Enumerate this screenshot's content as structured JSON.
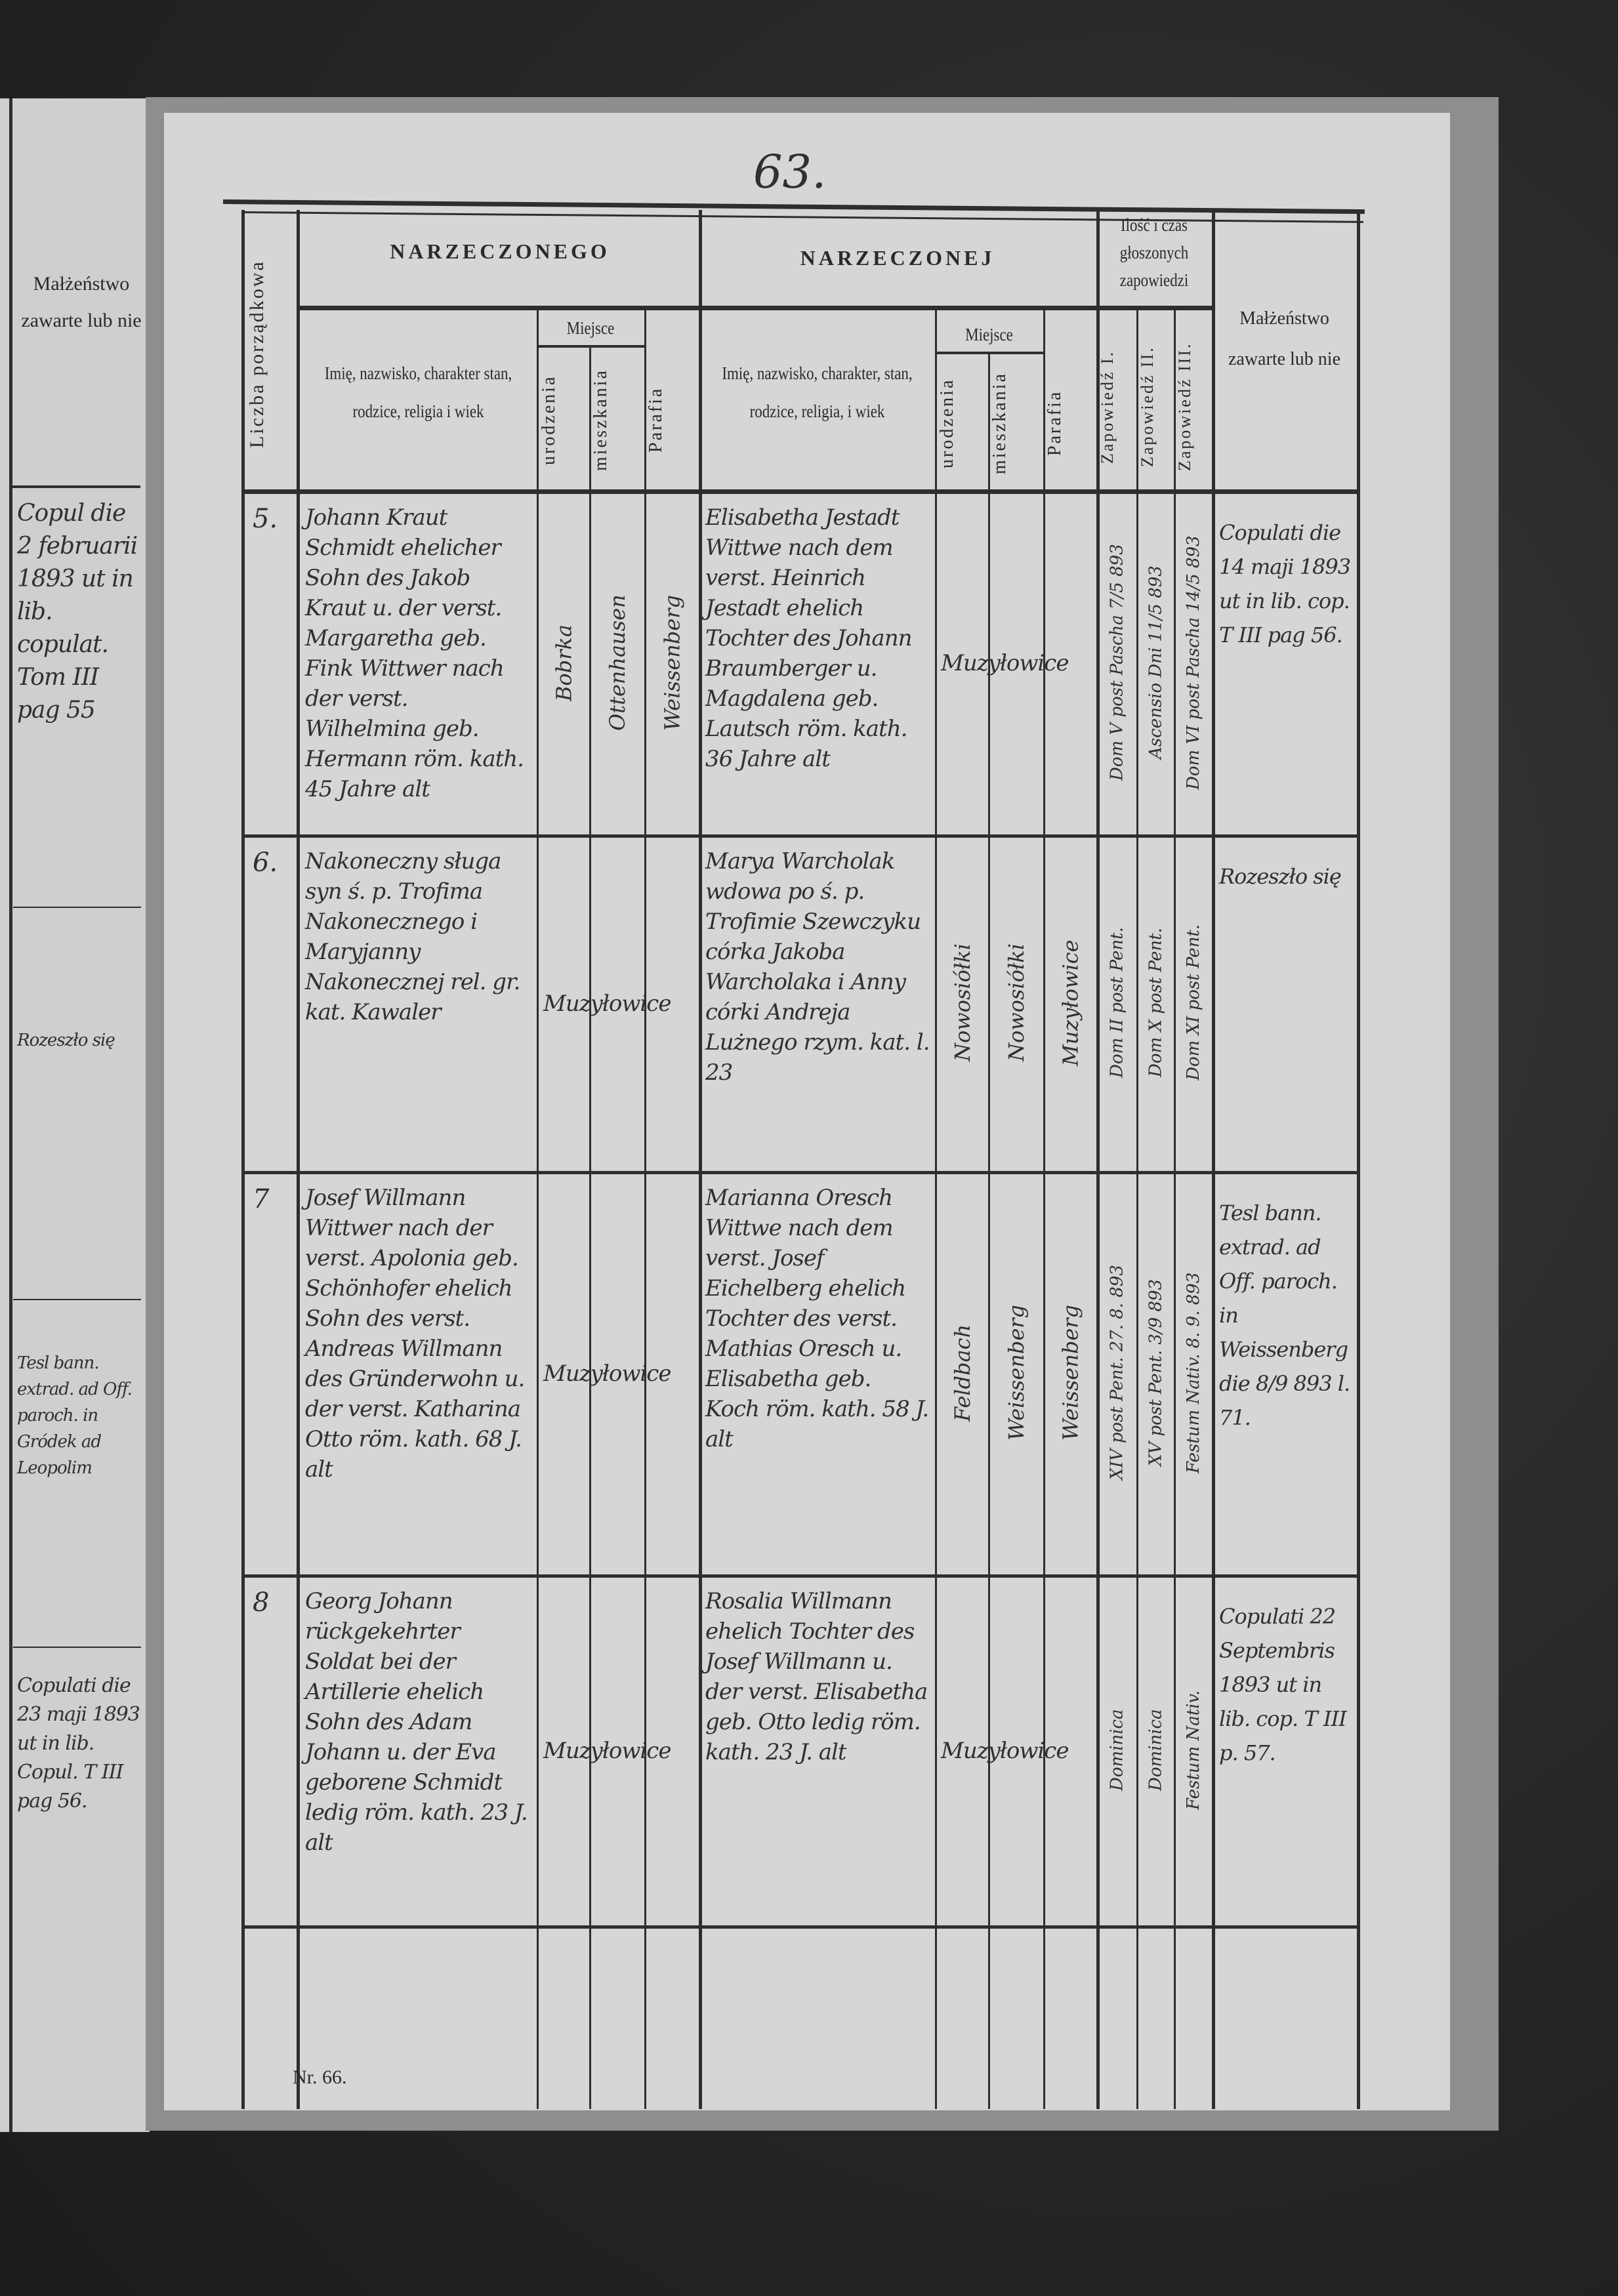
{
  "page_number": "63.",
  "footer": "Nr. 66.",
  "header": {
    "col_number": "Liczba porządkowa",
    "groom_group": "NARZECZONEGO",
    "bride_group": "NARZECZONEJ",
    "name_desc": "Imię, nazwisko, charakter stan, rodzice, religia i wiek",
    "bride_name_desc": "Imię, nazwisko, charakter, stan, rodzice, religia, i wiek",
    "place": "Miejsce",
    "birth": "urodzenia",
    "residence": "mieszkania",
    "parish": "Parafia",
    "banns_group": "Ilość i czas głoszonych zapowiedzi",
    "banns1": "Zapowiedź I.",
    "banns2": "Zapowiedź II.",
    "banns3": "Zapowiedź III.",
    "marriage": "Małżeństwo zawarte lub nie"
  },
  "left_page": {
    "header": "Małżeństwo zawarte lub nie",
    "notes": [
      "Copul die 2 februarii 1893 ut in lib. copulat. Tom III pag 55",
      "Rozeszło się",
      "Tesl bann. extrad. ad Off. paroch. in Gródek ad Leopolim",
      "Copulati die 23 maji 1893 ut in lib. Copul. T III pag 56."
    ]
  },
  "entries": [
    {
      "number": "5.",
      "groom": "Johann Kraut Schmidt ehelicher Sohn des Jakob Kraut u. der verst. Margaretha geb. Fink Wittwer nach der verst. Wilhelmina geb. Hermann röm. kath. 45 Jahre alt",
      "groom_birth": "Bobrka",
      "groom_residence": "Ottenhausen",
      "groom_parish": "Weissenberg",
      "groom_place_wide": "",
      "bride": "Elisabetha Jestadt Wittwe nach dem verst. Heinrich Jestadt ehelich Tochter des Johann Braumberger u. Magdalena geb. Lautsch röm. kath. 36 Jahre alt",
      "bride_birth": "",
      "bride_residence": "",
      "bride_parish": "",
      "bride_place_wide": "Muzyłowice",
      "banns": [
        "Dom V post Pascha 7/5 893",
        "Ascensio Dni 11/5 893",
        "Dom VI post Pascha 14/5 893"
      ],
      "marriage": "Copulati die 14 maji 1893 ut in lib. cop. T III pag 56."
    },
    {
      "number": "6.",
      "groom": "Nakoneczny sługa syn ś. p. Trofima Nakonecznego i Maryjanny Nakonecznej rel. gr. kat. Kawaler",
      "groom_birth": "",
      "groom_residence": "",
      "groom_parish": "",
      "groom_place_wide": "Muzyłowice",
      "bride": "Marya Warcholak wdowa po ś. p. Trofimie Szewczyku córka Jakoba Warcholaka i Anny córki Andreja Lużnego rzym. kat. l. 23",
      "bride_birth": "Nowosiółki",
      "bride_residence": "Nowosiółki",
      "bride_parish": "Muzyłowice",
      "bride_place_wide": "",
      "banns": [
        "Dom II post Pent.",
        "Dom X post Pent.",
        "Dom XI post Pent."
      ],
      "marriage": "Rozeszło się"
    },
    {
      "number": "7",
      "groom": "Josef Willmann Wittwer nach der verst. Apolonia geb. Schönhofer ehelich Sohn des verst. Andreas Willmann des Gründerwohn u. der verst. Katharina Otto röm. kath. 68 J. alt",
      "groom_birth": "",
      "groom_residence": "",
      "groom_parish": "",
      "groom_place_wide": "Muzyłowice",
      "bride": "Marianna Oresch Wittwe nach dem verst. Josef Eichelberg ehelich Tochter des verst. Mathias Oresch u. Elisabetha geb. Koch röm. kath. 58 J. alt",
      "bride_birth": "Feldbach",
      "bride_residence": "Weissenberg",
      "bride_parish": "Weissenberg",
      "bride_place_wide": "",
      "banns": [
        "XIV post Pent. 27. 8. 893",
        "XV post Pent. 3/9 893",
        "Festum Nativ. 8. 9. 893"
      ],
      "marriage": "Tesl bann. extrad. ad Off. paroch. in Weissenberg die 8/9 893 l. 71."
    },
    {
      "number": "8",
      "groom": "Georg Johann rückgekehrter Soldat bei der Artillerie ehelich Sohn des Adam Johann u. der Eva geborene Schmidt ledig röm. kath. 23 J. alt",
      "groom_birth": "",
      "groom_residence": "",
      "groom_parish": "",
      "groom_place_wide": "Muzyłowice",
      "bride": "Rosalia Willmann ehelich Tochter des Josef Willmann u. der verst. Elisabetha geb. Otto ledig röm. kath. 23 J. alt",
      "bride_birth": "",
      "bride_residence": "",
      "bride_parish": "",
      "bride_place_wide": "Muzyłowice",
      "banns": [
        "Dominica",
        "Dominica",
        "Festum Nativ."
      ],
      "marriage": "Copulati 22 Septembris 1893 ut in lib. cop. T III p. 57."
    }
  ]
}
